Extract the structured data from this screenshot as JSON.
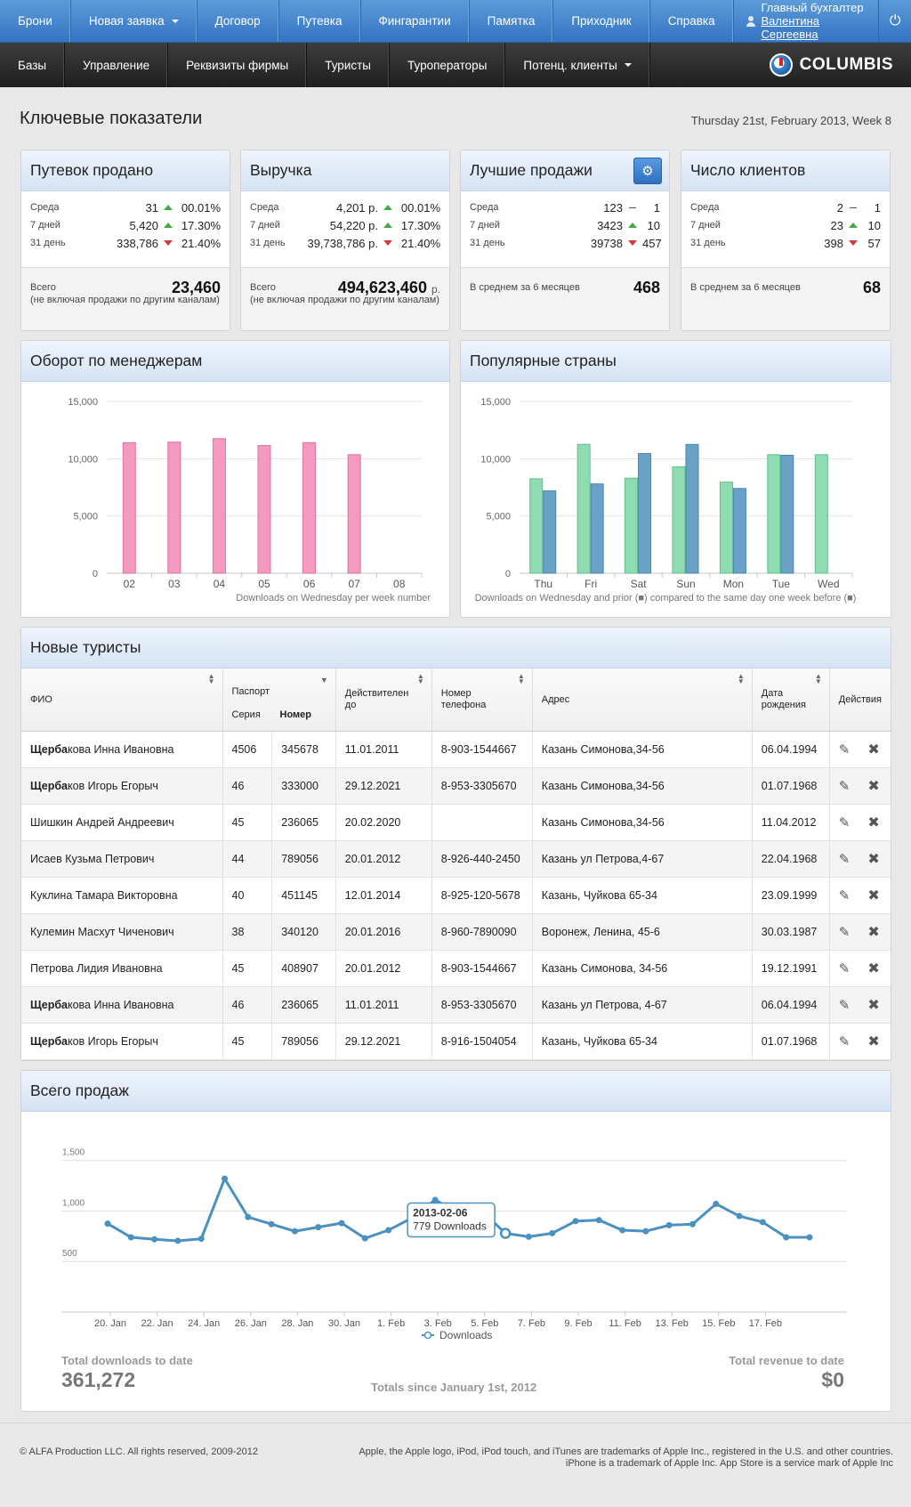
{
  "topnav": {
    "items": [
      "Брони",
      "Новая заявка",
      "Договор",
      "Путевка",
      "Фингарантии",
      "Памятка",
      "Приходник",
      "Справка"
    ],
    "user": {
      "role": "Главный бухгалтер",
      "name": "Валентина Сергеевна"
    },
    "power_icon": "power-icon"
  },
  "subnav": {
    "items": [
      "Базы",
      "Управление",
      "Реквизиты фирмы",
      "Туристы",
      "Туроператоры",
      "Потенц. клиенты"
    ],
    "logo": "COLUMBIS"
  },
  "page": {
    "title": "Ключевые показатели",
    "date": "Thursday 21st, February 2013, Week 8"
  },
  "stats": [
    {
      "title": "Путевок продано",
      "rows": [
        {
          "label": "Среда",
          "value": "31",
          "trend": "up",
          "pct": "00.01%"
        },
        {
          "label": "7 дней",
          "value": "5,420",
          "trend": "up",
          "pct": "17.30%"
        },
        {
          "label": "31 день",
          "value": "338,786",
          "trend": "down",
          "pct": "21.40%"
        }
      ],
      "total_label": "Всего",
      "total": "23,460",
      "total_unit": "",
      "note": "(не включая продажи по другим каналам)"
    },
    {
      "title": "Выручка",
      "rows": [
        {
          "label": "Среда",
          "value": "4,201 р.",
          "trend": "up",
          "pct": "00.01%"
        },
        {
          "label": "7 дней",
          "value": "54,220 р.",
          "trend": "up",
          "pct": "17.30%"
        },
        {
          "label": "31 день",
          "value": "39,738,786 р.",
          "trend": "down",
          "pct": "21.40%"
        }
      ],
      "total_label": "Всего",
      "total": "494,623,460",
      "total_unit": "р.",
      "note": "(не включая продажи по другим каналам)"
    },
    {
      "title": "Лучшие продажи",
      "rows": [
        {
          "label": "Среда",
          "value": "123",
          "trend": "flat",
          "pct": "1"
        },
        {
          "label": "7 дней",
          "value": "3423",
          "trend": "up",
          "pct": "10"
        },
        {
          "label": "31 день",
          "value": "39738",
          "trend": "down",
          "pct": "457"
        }
      ],
      "total_label": "В среднем за 6 месяцев",
      "total": "468",
      "total_unit": "",
      "note": ""
    },
    {
      "title": "Число клиентов",
      "rows": [
        {
          "label": "Среда",
          "value": "2",
          "trend": "flat",
          "pct": "1"
        },
        {
          "label": "7 дней",
          "value": "23",
          "trend": "up",
          "pct": "10"
        },
        {
          "label": "31 день",
          "value": "398",
          "trend": "down",
          "pct": "57"
        }
      ],
      "total_label": "В среднем за 6 месяцев",
      "total": "68",
      "total_unit": "",
      "note": ""
    }
  ],
  "colors": {
    "pink": "#f49ac1",
    "green": "#8fdcb3",
    "blue": "#6aa1c7",
    "line": "#4a90c0"
  },
  "managers_panel": {
    "title": "Оборот по менеджерам"
  },
  "countries_panel": {
    "title": "Популярные страны"
  },
  "tourists": {
    "title": "Новые туристы",
    "headers": {
      "fio": "ФИО",
      "passport": "Паспорт",
      "series": "Серия",
      "number": "Номер",
      "valid": "Действителен до",
      "phone": "Номер телефона",
      "address": "Адрес",
      "birth": "Дата рождения",
      "actions": "Действия"
    },
    "rows": [
      {
        "bold": "Щерба",
        "rest": "кова Инна Ивановна",
        "series": "4506",
        "number": "345678",
        "valid": "11.01.2011",
        "phone": "8-903-1544667",
        "address": "Казань Симонова,34-56",
        "birth": "06.04.1994"
      },
      {
        "bold": "Щерба",
        "rest": "ков Игорь Егорыч",
        "series": "46",
        "number": "333000",
        "valid": "29.12.2021",
        "phone": "8-953-3305670",
        "address": "Казань Симонова,34-56",
        "birth": "01.07.1968"
      },
      {
        "bold": "",
        "rest": "Шишкин Андрей Андреевич",
        "series": "45",
        "number": "236065",
        "valid": "20.02.2020",
        "phone": "",
        "address": "Казань Симонова,34-56",
        "birth": "11.04.2012"
      },
      {
        "bold": "",
        "rest": "Исаев Кузьма Петрович",
        "series": "44",
        "number": "789056",
        "valid": "20.01.2012",
        "phone": "8-926-440-2450",
        "address": "Казань ул Петрова,4-67",
        "birth": "22.04.1968"
      },
      {
        "bold": "",
        "rest": "Куклина Тамара Викторовна",
        "series": "40",
        "number": "451145",
        "valid": "12.01.2014",
        "phone": "8-925-120-5678",
        "address": "Казань, Чуйкова 65-34",
        "birth": "23.09.1999"
      },
      {
        "bold": "",
        "rest": "Кулемин Масхут Чиченович",
        "series": "38",
        "number": "340120",
        "valid": "20.01.2016",
        "phone": "8-960-7890090",
        "address": "Воронеж, Ленина, 45-6",
        "birth": "30.03.1987"
      },
      {
        "bold": "",
        "rest": "Петрова Лидия Ивановна",
        "series": "45",
        "number": "408907",
        "valid": "20.01.2012",
        "phone": "8-903-1544667",
        "address": "Казань Симонова, 34-56",
        "birth": "19.12.1991"
      },
      {
        "bold": "Щерба",
        "rest": "кова Инна Ивановна",
        "series": "46",
        "number": "236065",
        "valid": "11.01.2011",
        "phone": "8-953-3305670",
        "address": "Казань ул Петрова, 4-67",
        "birth": "06.04.1994"
      },
      {
        "bold": "Щерба",
        "rest": "ков Игорь Егорыч",
        "series": "45",
        "number": "789056",
        "valid": "29.12.2021",
        "phone": "8-916-1504054",
        "address": "Казань, Чуйкова 65-34",
        "birth": "01.07.1968"
      }
    ]
  },
  "sales": {
    "title": "Всего продаж",
    "total_downloads_label": "Total downloads to date",
    "total_downloads": "361,272",
    "since": "Totals since January 1st, 2012",
    "total_revenue_label": "Total revenue to date",
    "total_revenue": "$0",
    "tooltip": {
      "date": "2013-02-06",
      "text": "779 Downloads"
    }
  },
  "chart_data": [
    {
      "type": "bar",
      "title": "Оборот по менеджерам",
      "categories": [
        "02",
        "03",
        "04",
        "05",
        "06",
        "07",
        "08"
      ],
      "series": [
        {
          "name": "Downloads",
          "values": [
            11400,
            11450,
            11750,
            11150,
            11400,
            10350,
            null
          ]
        }
      ],
      "ylim": [
        0,
        15000
      ],
      "yticks": [
        "0",
        "5,000",
        "10,000",
        "15,000"
      ],
      "xlabel": "Downloads on Wednesday per week number"
    },
    {
      "type": "bar",
      "title": "Популярные страны",
      "categories": [
        "Thu",
        "Fri",
        "Sat",
        "Sun",
        "Mon",
        "Tue",
        "Wed"
      ],
      "series": [
        {
          "name": "prior",
          "values": [
            8250,
            11250,
            8300,
            9300,
            7950,
            10350,
            10350
          ]
        },
        {
          "name": "current",
          "values": [
            7200,
            7800,
            10450,
            11250,
            7400,
            10300,
            null
          ]
        }
      ],
      "ylim": [
        0,
        15000
      ],
      "yticks": [
        "0",
        "5,000",
        "10,000",
        "15,000"
      ],
      "xlabel": "Downloads on Wednesday and prior (■) compared to the same day one week before (■)"
    },
    {
      "type": "line",
      "title": "Всего продаж",
      "series": [
        {
          "name": "Downloads",
          "values": [
            875,
            740,
            720,
            705,
            725,
            1320,
            940,
            870,
            800,
            840,
            880,
            730,
            810,
            930,
            1110,
            980,
            1000,
            779,
            745,
            780,
            900,
            910,
            810,
            800,
            860,
            870,
            1070,
            950,
            890,
            740,
            740
          ]
        }
      ],
      "x_tick_labels": [
        "20. Jan",
        "22. Jan",
        "24. Jan",
        "26. Jan",
        "28. Jan",
        "30. Jan",
        "1. Feb",
        "3. Feb",
        "5. Feb",
        "7. Feb",
        "9. Feb",
        "11. Feb",
        "13. Feb",
        "15. Feb",
        "17. Feb"
      ],
      "ylim": [
        0,
        1500
      ],
      "yticks": [
        "500",
        "1,000",
        "1,500"
      ],
      "legend": "Downloads"
    }
  ],
  "footer": {
    "left": "© ALFA Production LLC. All rights reserved, 2009-2012",
    "right1": "Apple, the Apple logo, iPod, iPod touch, and iTunes are trademarks of Apple Inc., registered in the U.S. and other countries.",
    "right2": "iPhone is a trademark of Apple Inc. App Store is a service mark of Apple Inc"
  }
}
